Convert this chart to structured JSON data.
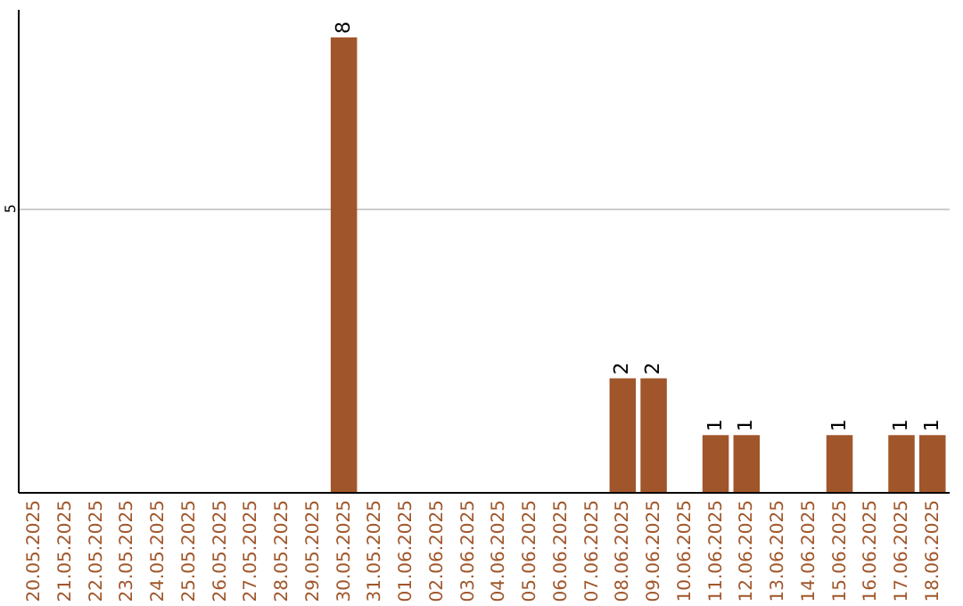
{
  "chart_data": {
    "type": "bar",
    "categories": [
      "20.05.2025",
      "21.05.2025",
      "22.05.2025",
      "23.05.2025",
      "24.05.2025",
      "25.05.2025",
      "26.05.2025",
      "27.05.2025",
      "28.05.2025",
      "29.05.2025",
      "30.05.2025",
      "31.05.2025",
      "01.06.2025",
      "02.06.2025",
      "03.06.2025",
      "04.06.2025",
      "05.06.2025",
      "06.06.2025",
      "07.06.2025",
      "08.06.2025",
      "09.06.2025",
      "10.06.2025",
      "11.06.2025",
      "12.06.2025",
      "13.06.2025",
      "14.06.2025",
      "15.06.2025",
      "16.06.2025",
      "17.06.2025",
      "18.06.2025"
    ],
    "values": [
      0,
      0,
      0,
      0,
      0,
      0,
      0,
      0,
      0,
      0,
      8,
      0,
      0,
      0,
      0,
      0,
      0,
      0,
      0,
      2,
      2,
      0,
      1,
      1,
      0,
      0,
      1,
      0,
      1,
      1
    ],
    "value_labels": [
      null,
      null,
      null,
      null,
      null,
      null,
      null,
      null,
      null,
      null,
      "8",
      null,
      null,
      null,
      null,
      null,
      null,
      null,
      null,
      "2",
      "2",
      null,
      "1",
      "1",
      null,
      null,
      "1",
      null,
      "1",
      "1"
    ],
    "color": "#a0562a",
    "ylim": [
      0,
      8.5
    ],
    "yticks": [
      5
    ],
    "grid": "y"
  }
}
